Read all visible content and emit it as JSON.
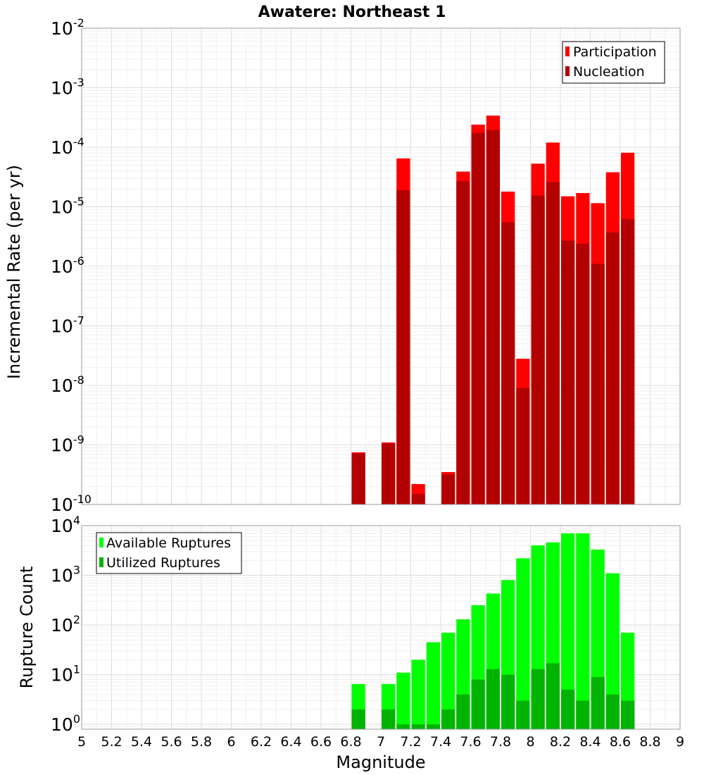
{
  "title": "Awatere: Northeast 1",
  "xlabel": "Magnitude",
  "colors": {
    "participation": "#ff0000",
    "nucleation": "#b30000",
    "available": "#00ff00",
    "utilized": "#00b300"
  },
  "chart_data": [
    {
      "type": "bar",
      "title": "Awatere: Northeast 1",
      "xlabel": "Magnitude",
      "ylabel": "Incremental Rate (per yr)",
      "y_scale": "log",
      "xlim": [
        5,
        9
      ],
      "ylim": [
        1e-10,
        0.01
      ],
      "bin_width": 0.1,
      "grid": true,
      "legend_position": "top-right",
      "y_ticks": [
        {
          "base": "10",
          "exp": "-2"
        },
        {
          "base": "10",
          "exp": "-3"
        },
        {
          "base": "10",
          "exp": "-4"
        },
        {
          "base": "10",
          "exp": "-5"
        },
        {
          "base": "10",
          "exp": "-6"
        },
        {
          "base": "10",
          "exp": "-7"
        },
        {
          "base": "10",
          "exp": "-8"
        },
        {
          "base": "10",
          "exp": "-9"
        },
        {
          "base": "10",
          "exp": "-10"
        }
      ],
      "x": [
        6.85,
        7.05,
        7.15,
        7.25,
        7.45,
        7.55,
        7.65,
        7.75,
        7.85,
        7.95,
        8.05,
        8.15,
        8.25,
        8.35,
        8.45,
        8.55,
        8.65
      ],
      "series": [
        {
          "name": "Participation",
          "values": [
            7.5e-10,
            1.1e-09,
            6.5e-05,
            2.2e-10,
            3.5e-10,
            3.9e-05,
            0.00024,
            0.00034,
            1.8e-05,
            2.8e-08,
            5.3e-05,
            0.00012,
            1.5e-05,
            1.7e-05,
            1.15e-05,
            3.8e-05,
            8.1e-05
          ]
        },
        {
          "name": "Nucleation",
          "values": [
            7.2e-10,
            1.05e-09,
            1.9e-05,
            1.5e-10,
            3.2e-10,
            2.7e-05,
            0.000175,
            0.000195,
            5.5e-06,
            9e-09,
            1.55e-05,
            2.6e-05,
            2.7e-06,
            2.4e-06,
            1.1e-06,
            3.7e-06,
            6.2e-06
          ]
        }
      ]
    },
    {
      "type": "bar",
      "xlabel": "Magnitude",
      "ylabel": "Rupture Count",
      "y_scale": "log",
      "xlim": [
        5,
        9
      ],
      "ylim": [
        0.8,
        10000
      ],
      "bin_width": 0.1,
      "grid": true,
      "legend_position": "top-left",
      "y_ticks": [
        {
          "base": "10",
          "exp": "4"
        },
        {
          "base": "10",
          "exp": "3"
        },
        {
          "base": "10",
          "exp": "2"
        },
        {
          "base": "10",
          "exp": "1"
        },
        {
          "base": "10",
          "exp": "0"
        }
      ],
      "x": [
        6.85,
        7.05,
        7.15,
        7.25,
        7.35,
        7.45,
        7.55,
        7.65,
        7.75,
        7.85,
        7.95,
        8.05,
        8.15,
        8.25,
        8.35,
        8.45,
        8.55,
        8.65
      ],
      "series": [
        {
          "name": "Available Ruptures",
          "values": [
            6.5,
            6.5,
            11,
            20,
            45,
            70,
            130,
            250,
            430,
            800,
            2200,
            4000,
            4600,
            7000,
            7000,
            3300,
            1100,
            70
          ]
        },
        {
          "name": "Utilized Ruptures",
          "values": [
            2,
            2,
            1,
            1,
            1,
            2,
            4,
            8,
            13,
            10,
            3,
            13,
            17,
            5,
            3,
            9,
            4,
            3
          ]
        }
      ],
      "x_tick_labels": [
        "5",
        "5.2",
        "5.4",
        "5.6",
        "5.8",
        "6",
        "6.2",
        "6.4",
        "6.6",
        "6.8",
        "7",
        "7.2",
        "7.4",
        "7.6",
        "7.8",
        "8",
        "8.2",
        "8.4",
        "8.6",
        "8.8",
        "9"
      ]
    }
  ]
}
